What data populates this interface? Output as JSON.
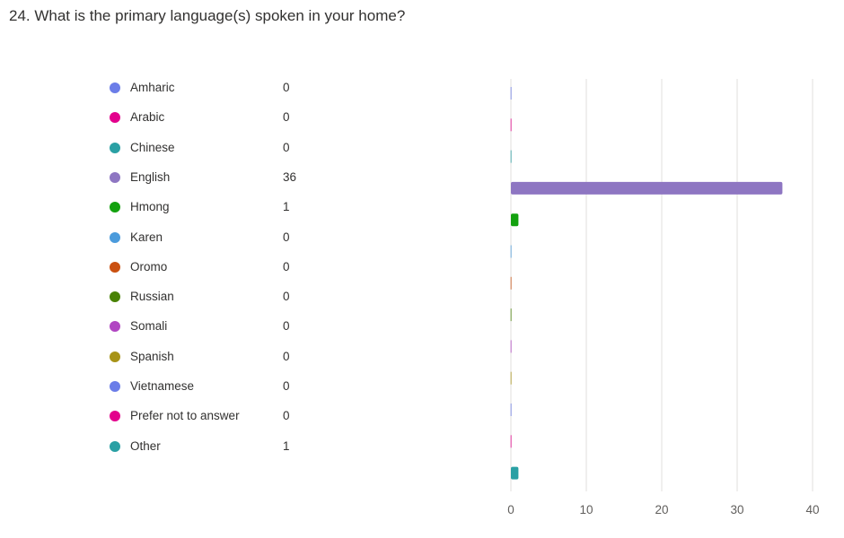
{
  "question": {
    "title": "24. What is the primary language(s) spoken in your home?"
  },
  "chart_data": {
    "type": "bar",
    "orientation": "horizontal",
    "categories": [
      "Amharic",
      "Arabic",
      "Chinese",
      "English",
      "Hmong",
      "Karen",
      "Oromo",
      "Russian",
      "Somali",
      "Spanish",
      "Vietnamese",
      "Prefer not to answer",
      "Other"
    ],
    "values": [
      0,
      0,
      0,
      36,
      1,
      0,
      0,
      0,
      0,
      0,
      0,
      0,
      1
    ],
    "colors": [
      "#6b7de8",
      "#e3008c",
      "#2aa0a4",
      "#8e76c2",
      "#13a10e",
      "#4b9bdc",
      "#ca5010",
      "#498205",
      "#b146c2",
      "#a79317",
      "#6b7de8",
      "#e3008c",
      "#2aa0a4"
    ],
    "xlim": [
      0,
      40
    ],
    "xticks": [
      "0",
      "10",
      "20",
      "30",
      "40"
    ],
    "grid": true,
    "legend": "left"
  }
}
